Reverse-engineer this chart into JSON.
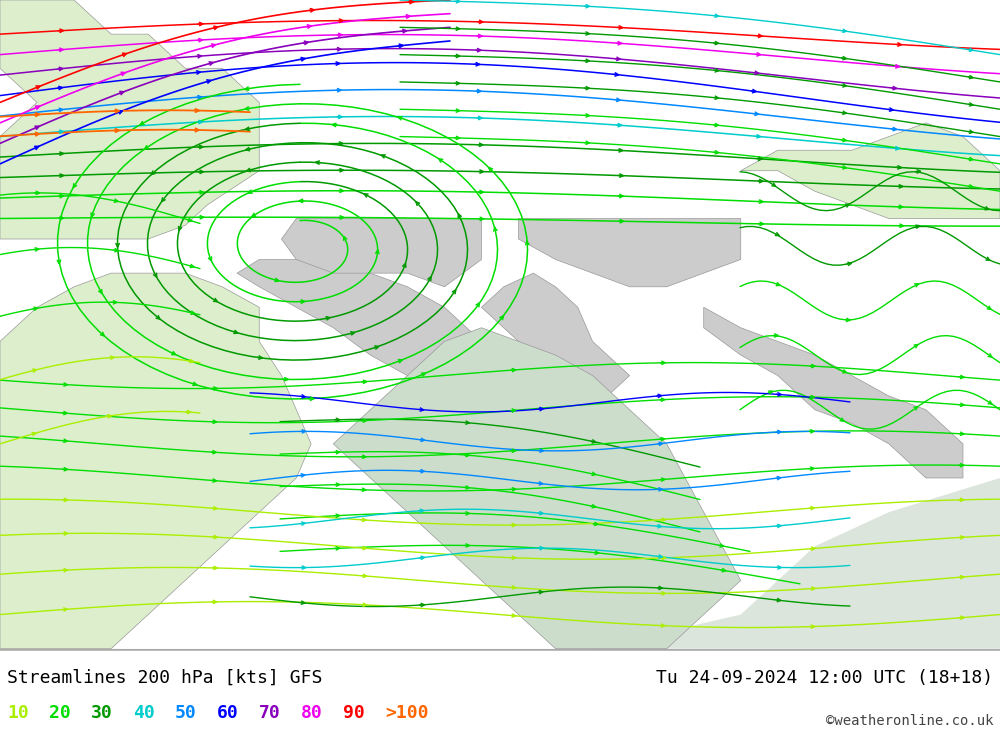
{
  "title_left": "Streamlines 200 hPa [kts] GFS",
  "title_right": "Tu 24-09-2024 12:00 UTC (18+18)",
  "copyright": "©weatheronline.co.uk",
  "legend_values": [
    "10",
    "20",
    "30",
    "40",
    "50",
    "60",
    "70",
    "80",
    "90",
    ">100"
  ],
  "legend_colors": [
    "#aaee00",
    "#00dd00",
    "#009900",
    "#00cccc",
    "#0088ff",
    "#0000ff",
    "#8800bb",
    "#ee00ee",
    "#ff0000",
    "#ff6600"
  ],
  "map_bg": "#aade88",
  "bottom_bg": "#ffffff",
  "title_fontsize": 13,
  "legend_fontsize": 13,
  "copyright_fontsize": 10,
  "speed_thresholds": [
    10,
    20,
    30,
    40,
    50,
    60,
    70,
    80,
    90,
    100
  ],
  "speed_colors": [
    "#aaee00",
    "#00dd00",
    "#009900",
    "#00cccc",
    "#0088ff",
    "#0000ff",
    "#8800bb",
    "#ee00ee",
    "#ff0000",
    "#ff6600"
  ]
}
